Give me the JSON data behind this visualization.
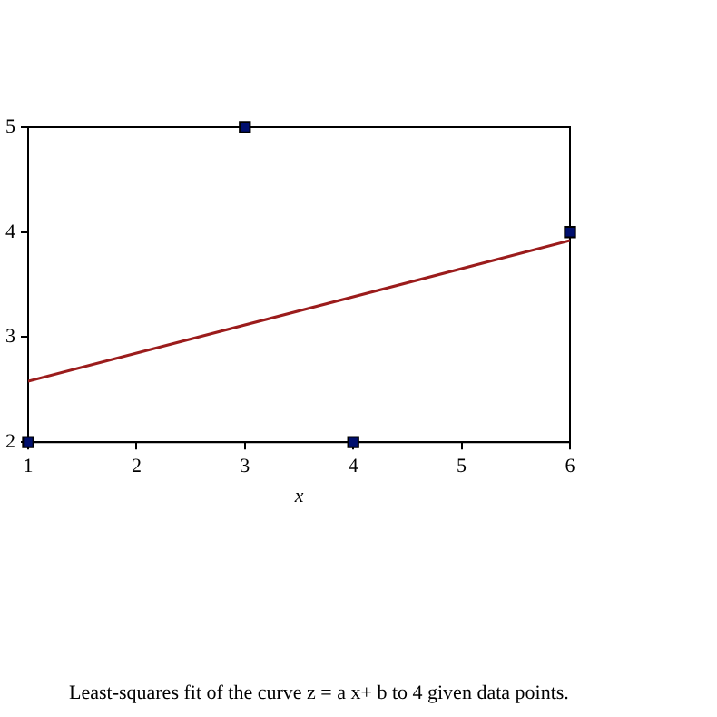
{
  "chart_data": {
    "type": "scatter",
    "xlabel": "x",
    "grid": false,
    "xlim": [
      1,
      6
    ],
    "xticks": [
      1,
      2,
      3,
      4,
      5,
      6
    ],
    "ylim": [
      2,
      5
    ],
    "yticks": [
      2,
      3,
      4,
      5
    ],
    "series": [
      {
        "color": "#000f6e",
        "marker": "square",
        "x": [
          1,
          3,
          4,
          6
        ],
        "values": [
          2,
          5,
          2,
          4
        ]
      },
      {
        "type": "line",
        "marker": "none",
        "color": "#9b1c1c",
        "x": [
          1,
          6
        ],
        "values": [
          2.58,
          3.92
        ]
      }
    ],
    "annotations": [
      "Least-squares fit of the curve z = a x+ b to 4 given data points."
    ]
  }
}
